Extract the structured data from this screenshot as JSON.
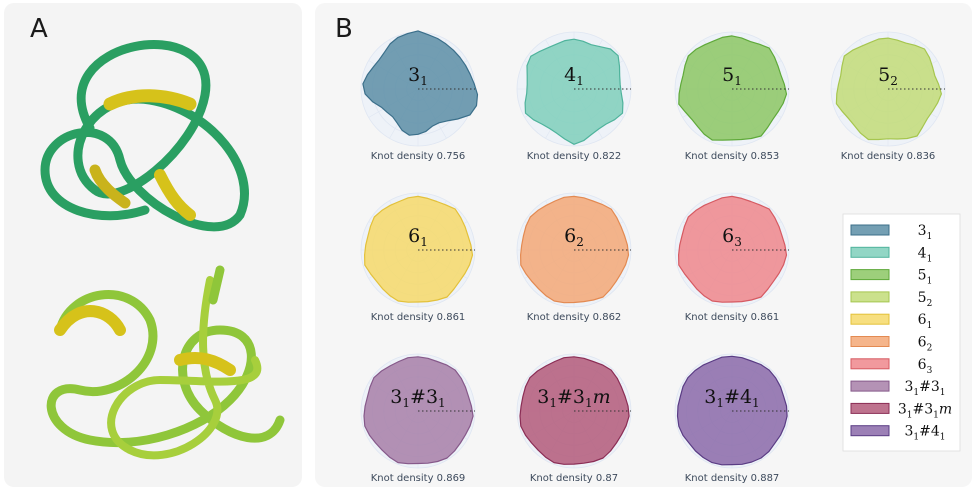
{
  "panels": {
    "a_label": "A",
    "b_label": "B"
  },
  "colors": {
    "knot_tube_green": "#1f9a5a",
    "knot_tube_yellow": "#d6c21a",
    "knot_tube_lime": "#8fc63a",
    "grid": "#dfe6f2"
  },
  "chart_data": {
    "type": "radar",
    "caption_prefix": "Knot density",
    "knots": [
      {
        "name": "3_1",
        "base": "3",
        "sub": "1",
        "density": 0.756,
        "fill": "#5c8ea6",
        "edge": "#3b6f8a",
        "shape": [
          1.05,
          1.0,
          0.98,
          0.96,
          0.95,
          0.95,
          0.96,
          0.98,
          1.02,
          1.08,
          1.1,
          1.05,
          0.9,
          0.78,
          0.72,
          0.72,
          0.78,
          0.82,
          0.85,
          0.8,
          0.72,
          0.68,
          0.7,
          0.74,
          0.85,
          0.96,
          1.0,
          0.95,
          0.9,
          0.88,
          0.9,
          0.96,
          1.0,
          1.02
        ]
      },
      {
        "name": "4_1",
        "base": "4",
        "sub": "1",
        "density": 0.822,
        "fill": "#7fcfbb",
        "edge": "#4fb39c",
        "shape": [
          0.9,
          0.88,
          0.86,
          0.9,
          0.98,
          1.0,
          0.92,
          0.86,
          0.84,
          0.86,
          0.92,
          0.98,
          0.92,
          0.86,
          0.85,
          0.88,
          0.95,
          1.0,
          0.92,
          0.86,
          0.84,
          0.86,
          0.92,
          0.98,
          0.92,
          0.86,
          0.85,
          0.88,
          0.95,
          0.98,
          0.92,
          0.88,
          0.87,
          0.89
        ]
      },
      {
        "name": "5_1",
        "base": "5",
        "sub": "1",
        "density": 0.853,
        "fill": "#8cc764",
        "edge": "#5fa93a",
        "shape": [
          0.96,
          0.94,
          0.92,
          0.95,
          1.0,
          0.96,
          0.93,
          0.92,
          0.95,
          0.99,
          0.96,
          0.93,
          0.92,
          0.95,
          1.0,
          0.96,
          0.93,
          0.92,
          0.94,
          0.99,
          0.96,
          0.92,
          0.91,
          0.94,
          1.0,
          0.96,
          0.93,
          0.92,
          0.95,
          0.99,
          0.97,
          0.94,
          0.93,
          0.95
        ]
      },
      {
        "name": "5_2",
        "base": "5",
        "sub": "2",
        "density": 0.836,
        "fill": "#c2dc78",
        "edge": "#a6c64f",
        "shape": [
          0.92,
          0.9,
          0.89,
          0.93,
          0.98,
          0.94,
          0.9,
          0.88,
          0.92,
          0.97,
          0.93,
          0.9,
          0.89,
          0.93,
          1.0,
          0.96,
          0.92,
          0.9,
          0.93,
          0.98,
          0.94,
          0.9,
          0.89,
          0.92,
          0.97,
          0.93,
          0.9,
          0.89,
          0.93,
          0.99,
          0.95,
          0.91,
          0.9,
          0.92
        ]
      },
      {
        "name": "6_1",
        "base": "6",
        "sub": "1",
        "density": 0.861,
        "fill": "#f6d96a",
        "edge": "#e3c13a",
        "shape": [
          0.97,
          0.95,
          0.94,
          0.96,
          1.0,
          0.97,
          0.95,
          0.94,
          0.96,
          0.99,
          0.97,
          0.95,
          0.94,
          0.96,
          1.0,
          0.97,
          0.95,
          0.94,
          0.96,
          0.99,
          0.97,
          0.95,
          0.94,
          0.96,
          1.0,
          0.97,
          0.95,
          0.94,
          0.96,
          0.99,
          0.97,
          0.95,
          0.94,
          0.96
        ]
      },
      {
        "name": "6_2",
        "base": "6",
        "sub": "2",
        "density": 0.862,
        "fill": "#f3a877",
        "edge": "#e38a52",
        "shape": [
          0.97,
          0.96,
          0.95,
          0.97,
          1.0,
          0.97,
          0.95,
          0.95,
          0.97,
          0.99,
          0.97,
          0.95,
          0.95,
          0.97,
          1.0,
          0.97,
          0.95,
          0.95,
          0.97,
          0.99,
          0.97,
          0.95,
          0.95,
          0.97,
          1.0,
          0.97,
          0.95,
          0.95,
          0.97,
          0.99,
          0.97,
          0.95,
          0.95,
          0.97
        ]
      },
      {
        "name": "6_3",
        "base": "6",
        "sub": "3",
        "density": 0.861,
        "fill": "#ee878c",
        "edge": "#d65a62",
        "shape": [
          0.97,
          0.95,
          0.94,
          0.96,
          1.0,
          0.97,
          0.95,
          0.94,
          0.96,
          0.99,
          0.97,
          0.95,
          0.94,
          0.96,
          1.0,
          0.97,
          0.95,
          0.94,
          0.96,
          0.99,
          0.97,
          0.95,
          0.94,
          0.96,
          1.0,
          0.97,
          0.95,
          0.94,
          0.96,
          0.99,
          0.97,
          0.95,
          0.94,
          0.96
        ]
      },
      {
        "name": "3_1#3_1",
        "base": "3",
        "sub": "1",
        "base2": "#3",
        "sub2": "1",
        "density": 0.869,
        "fill": "#a77fa8",
        "edge": "#86598a",
        "shape": [
          0.98,
          0.97,
          0.96,
          0.98,
          1.0,
          0.98,
          0.96,
          0.95,
          0.97,
          1.0,
          0.98,
          0.96,
          0.96,
          0.98,
          1.0,
          0.98,
          0.96,
          0.95,
          0.97,
          1.0,
          0.98,
          0.96,
          0.96,
          0.98,
          1.0,
          0.98,
          0.96,
          0.95,
          0.97,
          1.0,
          0.98,
          0.96,
          0.96,
          0.98
        ]
      },
      {
        "name": "3_1#3_1m",
        "base": "3",
        "sub": "1",
        "base2": "#3",
        "sub2": "1",
        "suffix": "m",
        "density": 0.87,
        "fill": "#b35b7a",
        "edge": "#8b2d55",
        "shape": [
          0.98,
          0.97,
          0.96,
          0.98,
          1.0,
          0.98,
          0.96,
          0.96,
          0.98,
          1.0,
          0.98,
          0.96,
          0.96,
          0.98,
          1.0,
          0.98,
          0.96,
          0.96,
          0.98,
          1.0,
          0.98,
          0.96,
          0.96,
          0.98,
          1.0,
          0.98,
          0.96,
          0.96,
          0.98,
          1.0,
          0.98,
          0.96,
          0.96,
          0.98
        ]
      },
      {
        "name": "3_1#4_1",
        "base": "3",
        "sub": "1",
        "base2": "#4",
        "sub2": "1",
        "density": 0.887,
        "fill": "#8b6aa9",
        "edge": "#5a3c84",
        "shape": [
          0.99,
          0.98,
          0.97,
          0.99,
          1.0,
          0.99,
          0.98,
          0.97,
          0.99,
          1.0,
          0.99,
          0.98,
          0.97,
          0.99,
          1.0,
          0.99,
          0.98,
          0.97,
          0.99,
          1.0,
          0.99,
          0.98,
          0.97,
          0.99,
          1.0,
          0.99,
          0.98,
          0.97,
          0.99,
          1.0,
          0.99,
          0.98,
          0.97,
          0.99
        ]
      }
    ]
  }
}
